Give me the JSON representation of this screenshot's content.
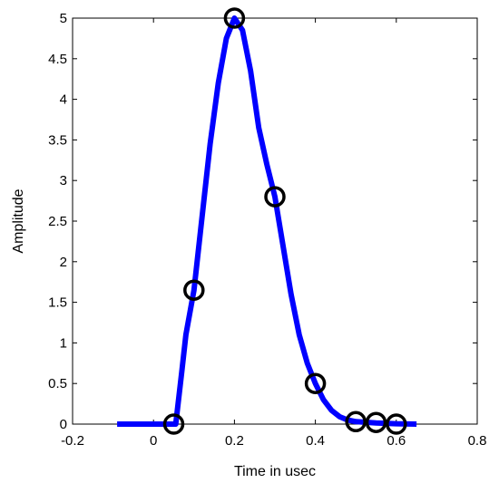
{
  "chart_data": {
    "type": "line",
    "xlabel": "Time in usec",
    "ylabel": "Amplitude",
    "xlim": [
      -0.2,
      0.8
    ],
    "ylim": [
      0,
      5
    ],
    "xticks": [
      "-0.2",
      "0",
      "0.2",
      "0.4",
      "0.6",
      "0.8"
    ],
    "yticks": [
      "0",
      "0.5",
      "1",
      "1.5",
      "2",
      "2.5",
      "3",
      "3.5",
      "4",
      "4.5",
      "5"
    ],
    "grid": false,
    "series": [
      {
        "style": "line",
        "color": "#0000ff",
        "x": [
          -0.09,
          0.055,
          0.07,
          0.08,
          0.1,
          0.12,
          0.14,
          0.16,
          0.18,
          0.2,
          0.22,
          0.24,
          0.26,
          0.28,
          0.3,
          0.32,
          0.34,
          0.36,
          0.38,
          0.4,
          0.42,
          0.44,
          0.46,
          0.48,
          0.5,
          0.55,
          0.6,
          0.65
        ],
        "y": [
          0,
          0,
          0.65,
          1.1,
          1.65,
          2.55,
          3.45,
          4.2,
          4.75,
          5.0,
          4.85,
          4.35,
          3.65,
          3.2,
          2.8,
          2.2,
          1.6,
          1.1,
          0.75,
          0.5,
          0.3,
          0.17,
          0.09,
          0.05,
          0.03,
          0.015,
          0.005,
          0
        ]
      },
      {
        "style": "markers",
        "marker": "circle",
        "color": "#000000",
        "x": [
          0.05,
          0.1,
          0.2,
          0.3,
          0.4,
          0.5,
          0.55,
          0.6
        ],
        "y": [
          0,
          1.65,
          5.0,
          2.8,
          0.5,
          0.03,
          0.02,
          0.0
        ]
      }
    ]
  }
}
